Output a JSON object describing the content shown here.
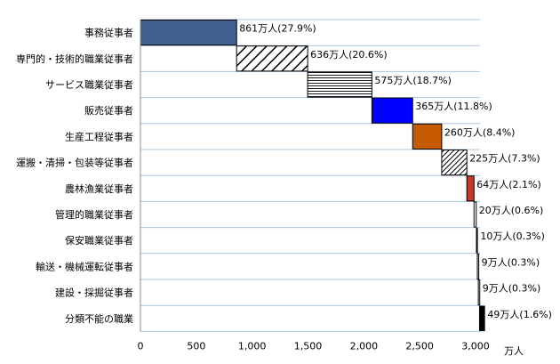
{
  "chart_data": {
    "type": "bar",
    "orientation": "horizontal",
    "layout": "waterfall",
    "categories": [
      "事務従事者",
      "専門的・技術的職業従事者",
      "サービス職業従事者",
      "販売従事者",
      "生産工程従事者",
      "運搬・清掃・包装等従事者",
      "農林漁業従事者",
      "管理的職業従事者",
      "保安職業従事者",
      "輸送・機械運転従事者",
      "建設・採掘従事者",
      "分類不能の職業"
    ],
    "values": [
      861,
      636,
      575,
      365,
      260,
      225,
      64,
      20,
      10,
      9,
      9,
      49
    ],
    "data_labels": [
      "861万人(27.9%)",
      "636万人(20.6%)",
      "575万人(18.7%)",
      "365万人(11.8%)",
      "260万人(8.4%)",
      "225万人(7.3%)",
      "64万人(2.1%)",
      "20万人(0.6%)",
      "10万人(0.3%)",
      "9万人(0.3%)",
      "9万人(0.3%)",
      "49万人(1.6%)"
    ],
    "xlim": [
      0,
      3000
    ],
    "xticks": [
      "0",
      "500",
      "1,000",
      "1,500",
      "2,000",
      "2,500",
      "3,000"
    ],
    "xunit": "万人",
    "grid": "horizontal",
    "colors": [
      "#3f5f8f",
      "hatch",
      "#ffffff",
      "#0000ff",
      "#c55a00",
      "hatch-dense",
      "#c0392b",
      "#ffffff",
      "#000000",
      "#ffffff",
      "#ffffff",
      "#000000"
    ]
  }
}
